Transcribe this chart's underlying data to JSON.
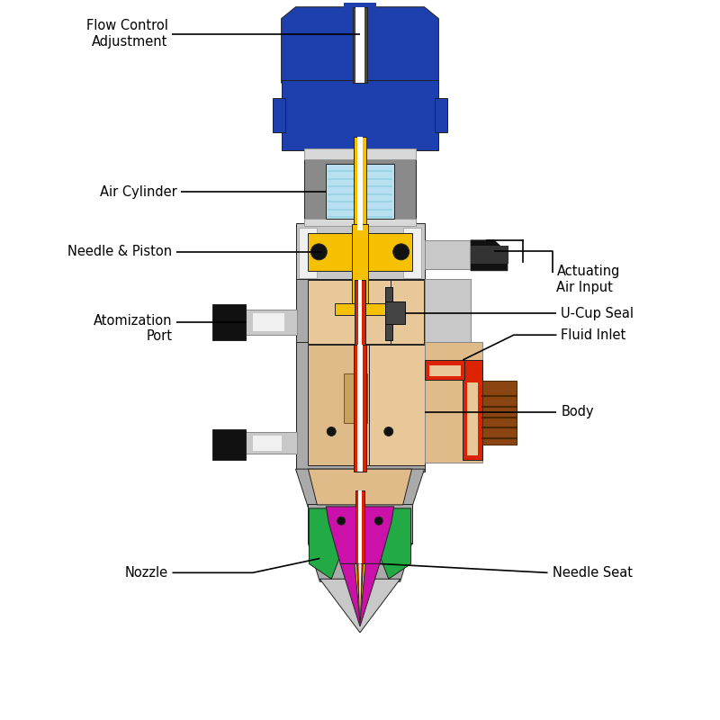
{
  "bg_color": "#ffffff",
  "labels": {
    "flow_control": "Flow Control\nAdjustment",
    "air_cylinder": "Air Cylinder",
    "actuating_air": "Actuating\nAir Input",
    "needle_piston": "Needle & Piston",
    "atomization_port": "Atomization\nPort",
    "u_cup_seal": "U-Cup Seal",
    "fluid_inlet": "Fluid Inlet",
    "body": "Body",
    "nozzle": "Nozzle",
    "needle_seat": "Needle Seat"
  },
  "colors": {
    "blue": "#1e3fae",
    "blue2": "#2244bb",
    "gray": "#8a8a8a",
    "mid_gray": "#aaaaaa",
    "light_gray": "#c8c8c8",
    "silver": "#d8d8d8",
    "yellow_gold": "#f5c000",
    "white": "#ffffff",
    "light_blue": "#b8e0f0",
    "black": "#111111",
    "tan": "#debb88",
    "tan2": "#e8c898",
    "dark_tan": "#c8a060",
    "red": "#cc1111",
    "bright_red": "#dd2200",
    "dark_red": "#990000",
    "green": "#22aa44",
    "magenta": "#cc11aa",
    "dark_brown": "#7a3a10",
    "brown": "#8b4513",
    "yellow": "#eeee00",
    "dark_gray": "#444444",
    "charcoal": "#333333",
    "off_white": "#f0f0f0"
  },
  "label_color": "#000000",
  "label_fontsize": 10.5,
  "annotation_linewidth": 1.2
}
